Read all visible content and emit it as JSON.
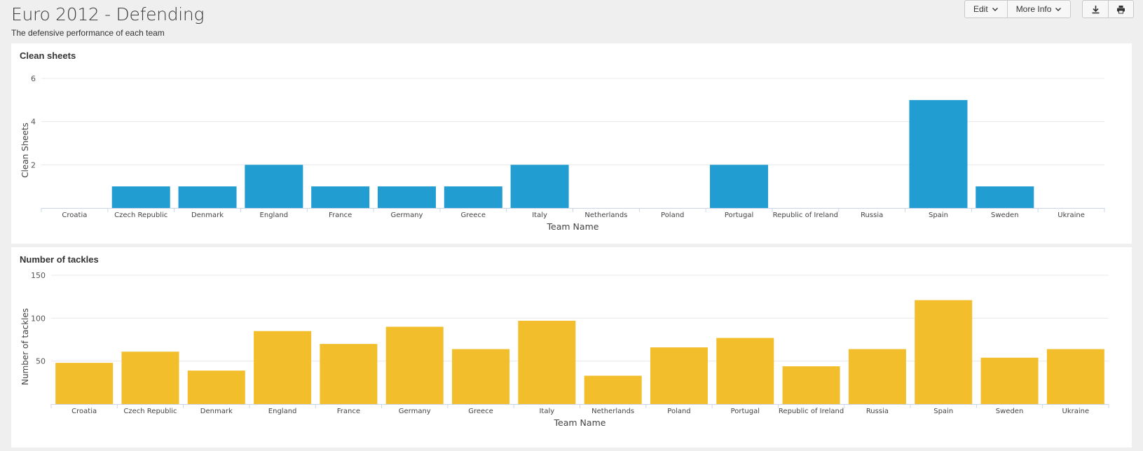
{
  "header": {
    "title": "Euro 2012 - Defending",
    "subtitle": "The defensive performance of each team"
  },
  "toolbar": {
    "edit_label": "Edit",
    "more_info_label": "More Info"
  },
  "panels": [
    {
      "title": "Clean sheets"
    },
    {
      "title": "Number of tackles"
    }
  ],
  "colors": {
    "clean_sheets": "#229dd1",
    "tackles": "#f2be2c"
  },
  "chart_data": [
    {
      "type": "bar",
      "title": "Clean sheets",
      "xlabel": "Team Name",
      "ylabel": "Clean Sheets",
      "ylim": [
        0,
        6
      ],
      "yticks": [
        2,
        4,
        6
      ],
      "grid": true,
      "categories": [
        "Croatia",
        "Czech Republic",
        "Denmark",
        "England",
        "France",
        "Germany",
        "Greece",
        "Italy",
        "Netherlands",
        "Poland",
        "Portugal",
        "Republic of Ireland",
        "Russia",
        "Spain",
        "Sweden",
        "Ukraine"
      ],
      "values": [
        0,
        1,
        1,
        2,
        1,
        1,
        1,
        2,
        0,
        0,
        2,
        0,
        0,
        5,
        1,
        0
      ]
    },
    {
      "type": "bar",
      "title": "Number of tackles",
      "xlabel": "Team Name",
      "ylabel": "Number of tackles",
      "ylim": [
        0,
        150
      ],
      "yticks": [
        50,
        100,
        150
      ],
      "grid": true,
      "categories": [
        "Croatia",
        "Czech Republic",
        "Denmark",
        "England",
        "France",
        "Germany",
        "Greece",
        "Italy",
        "Netherlands",
        "Poland",
        "Portugal",
        "Republic of Ireland",
        "Russia",
        "Spain",
        "Sweden",
        "Ukraine"
      ],
      "values": [
        48,
        61,
        39,
        85,
        70,
        90,
        64,
        97,
        33,
        66,
        77,
        44,
        64,
        121,
        54,
        64
      ]
    }
  ]
}
